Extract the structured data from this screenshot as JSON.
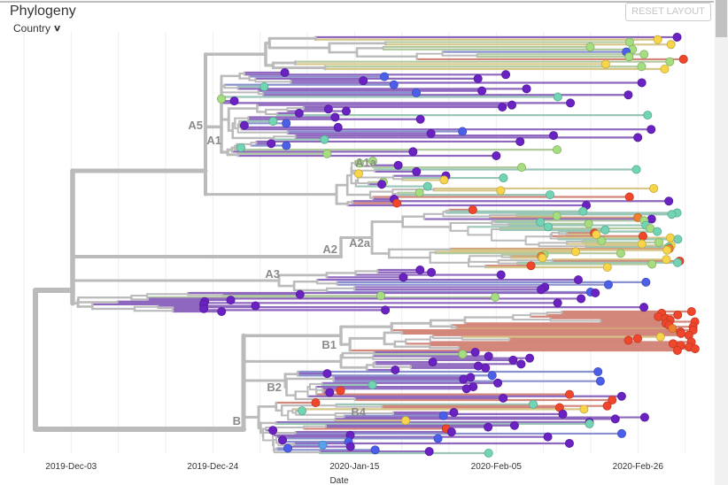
{
  "panel": {
    "title": "Phylogeny",
    "color_by": "Country",
    "reset_label": "RESET LAYOUT"
  },
  "chart_data": {
    "type": "tree",
    "layout": "rectangular",
    "xlabel": "Date",
    "x_ticks": [
      "2019-Dec-03",
      "2019-Dec-24",
      "2020-Jan-15",
      "2020-Feb-05",
      "2020-Feb-26"
    ],
    "grid": true,
    "clades": [
      "A5",
      "A1",
      "A1a",
      "A2",
      "A2a",
      "A3",
      "B1",
      "B2",
      "B4",
      "B"
    ],
    "tip_colors": {
      "purple": "#6a22c2",
      "red": "#f0472c",
      "orange": "#f07f2f",
      "yellow": "#f7d44a",
      "green": "#a6dd80",
      "teal": "#72d4b4",
      "blue": "#4c5fe8",
      "lightblue": "#5aa2f0"
    },
    "branch_color": "#bbbbbb"
  }
}
